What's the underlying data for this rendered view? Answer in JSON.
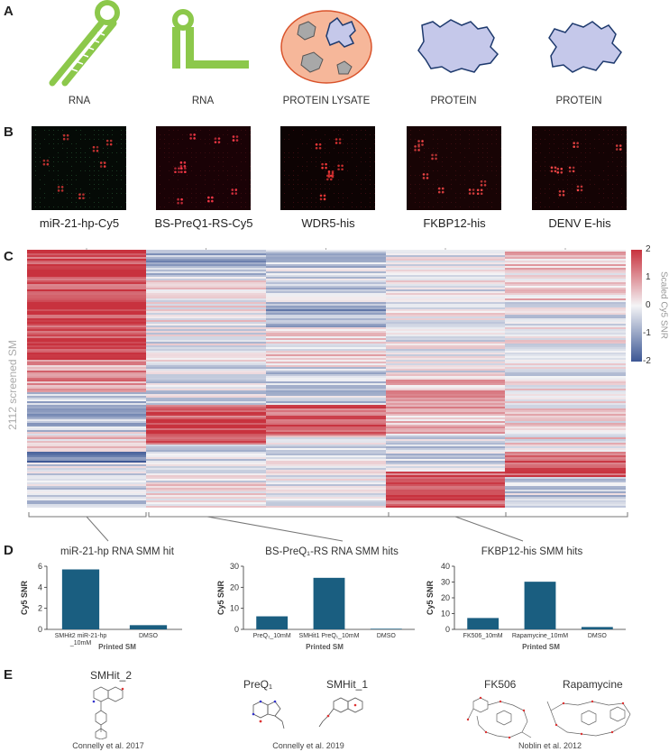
{
  "panels": {
    "a": "A",
    "b": "B",
    "c": "C",
    "d": "D",
    "e": "E"
  },
  "panel_a": {
    "captions": [
      "RNA",
      "RNA",
      "PROTEIN LYSATE",
      "PROTEIN",
      "PROTEIN"
    ],
    "colors": {
      "rna": "#8cc84b",
      "lysate": "#f6b79a",
      "protein": "#c5c8ea",
      "outline": "#1e3a6e"
    }
  },
  "panel_b": {
    "captions": [
      "miR-21-hp-Cy5",
      "BS-PreQ1-RS-Cy5",
      "WDR5-his",
      "FKBP12-his",
      "DENV E-his"
    ]
  },
  "panel_c": {
    "ylabel": "2112 screened SM",
    "colorbar_label": "Scaled Cy5 SNR",
    "colorbar_ticks": [
      "2",
      "1",
      "0",
      "-1",
      "-2"
    ]
  },
  "chart_data": [
    {
      "type": "bar",
      "title": "miR-21-hp RNA SMM hit",
      "categories": [
        "SMHit2 miR-21-hp _10mM",
        "DMSO"
      ],
      "values": [
        5.7,
        0.4
      ],
      "ylabel": "Cy5 SNR",
      "xlabel": "Printed SM",
      "ylim": [
        0,
        6
      ],
      "yticks": [
        "0",
        "2",
        "4",
        "6"
      ]
    },
    {
      "type": "bar",
      "title": "BS-PreQ₁-RS RNA SMM hits",
      "categories": [
        "PreQ₁_10mM",
        "SMHit1 PreQ₁_10mM",
        "DMSO"
      ],
      "values": [
        6.2,
        24.5,
        0.3
      ],
      "ylabel": "Cy5 SNR",
      "xlabel": "Printed SM",
      "ylim": [
        0,
        30
      ],
      "yticks": [
        "0",
        "10",
        "20",
        "30"
      ]
    },
    {
      "type": "bar",
      "title": "FKBP12-his SMM hits",
      "categories": [
        "FK506_10mM",
        "Rapamycine_10mM",
        "DMSO"
      ],
      "values": [
        7.2,
        30.2,
        1.5
      ],
      "ylabel": "Cy5 SNR",
      "xlabel": "Printed SM",
      "ylim": [
        0,
        40
      ],
      "yticks": [
        "0",
        "10",
        "20",
        "30",
        "40"
      ]
    }
  ],
  "bar_color": "#1a5e80",
  "panel_e": {
    "titles": [
      "SMHit_2",
      "PreQ₁",
      "SMHit_1",
      "FK506",
      "Rapamycine"
    ],
    "citations": [
      "Connelly et al. 2017",
      "Connelly et al. 2019",
      "Noblin et al. 2012"
    ]
  }
}
